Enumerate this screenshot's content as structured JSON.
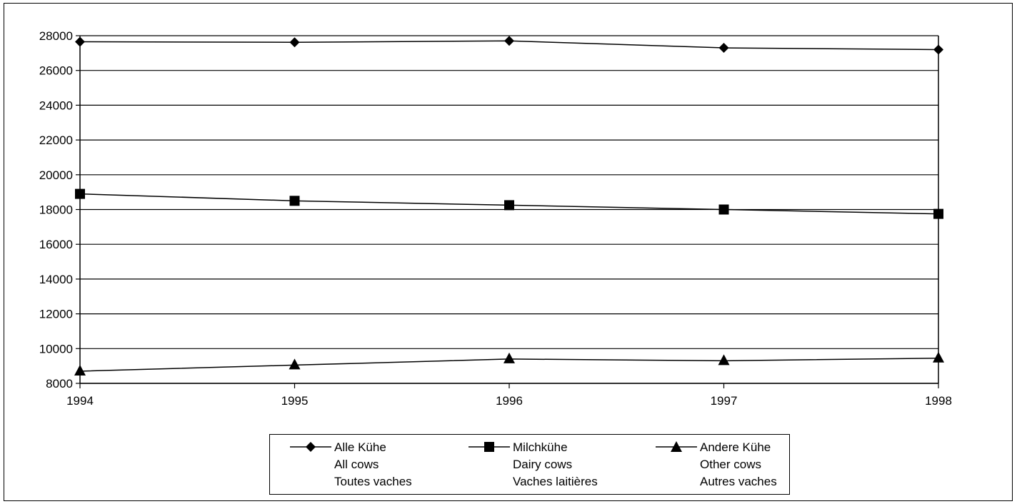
{
  "chart_data": {
    "type": "line",
    "x": [
      "1994",
      "1995",
      "1996",
      "1997",
      "1998"
    ],
    "ylim": [
      8000,
      28000
    ],
    "yticks": [
      "28000",
      "26000",
      "24000",
      "22000",
      "20000",
      "18000",
      "16000",
      "14000",
      "12000",
      "10000",
      "8000"
    ],
    "grid": true,
    "legend_position": "bottom-center",
    "series": [
      {
        "name": "Alle Kühe",
        "name_en": "All cows",
        "name_fr": "Toutes vaches",
        "marker": "diamond",
        "color": "#000000",
        "values": [
          27650,
          27620,
          27700,
          27300,
          27200
        ]
      },
      {
        "name": "Milchkühe",
        "name_en": "Dairy cows",
        "name_fr": "Vaches laitières",
        "marker": "square",
        "color": "#000000",
        "values": [
          18900,
          18500,
          18250,
          18000,
          17750
        ]
      },
      {
        "name": "Andere Kühe",
        "name_en": "Other cows",
        "name_fr": "Autres vaches",
        "marker": "triangle",
        "color": "#000000",
        "values": [
          8700,
          9050,
          9400,
          9300,
          9450
        ]
      }
    ]
  }
}
